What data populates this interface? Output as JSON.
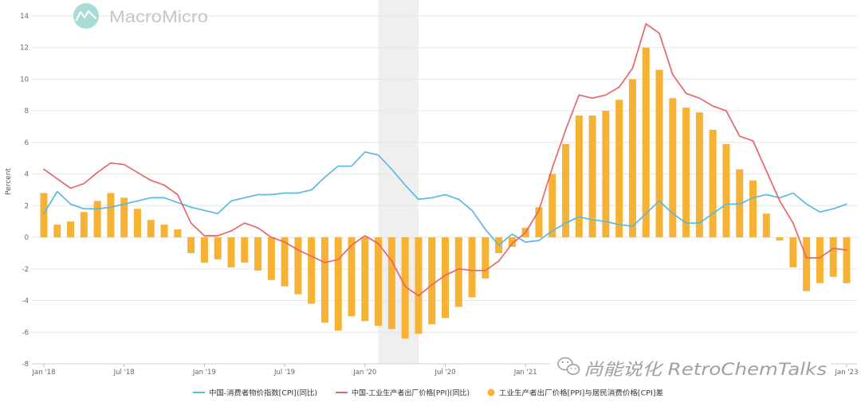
{
  "logo": {
    "text": "MacroMicro",
    "icon": "macromicro-logo-icon",
    "icon_color": "#a7ddd6",
    "text_color": "#c6c6c6"
  },
  "watermark": {
    "text": "尚能说化 RetroChemTalks",
    "icon": "wechat-icon",
    "color": "#a0a0a0"
  },
  "chart_data": {
    "type": "bar",
    "ylabel": "Percent",
    "ylim": [
      -8,
      14
    ],
    "yticks": [
      14,
      12,
      10,
      8,
      6,
      4,
      2,
      0,
      -2,
      -4,
      -6,
      -8
    ],
    "xlim": [
      "2018-01",
      "2023-01"
    ],
    "xticks": [
      {
        "date": "2018-01",
        "label": "Jan '18"
      },
      {
        "date": "2018-07",
        "label": "Jul '18"
      },
      {
        "date": "2019-01",
        "label": "Jan '19"
      },
      {
        "date": "2019-07",
        "label": "Jul '19"
      },
      {
        "date": "2020-01",
        "label": "Jan '20"
      },
      {
        "date": "2020-07",
        "label": "Jul '20"
      },
      {
        "date": "2021-01",
        "label": "Jan '21"
      },
      {
        "date": "2023-01",
        "label": "Jan '23"
      }
    ],
    "grid": true,
    "legend_position": "bottom",
    "shaded_ranges": [
      {
        "from": "2020-02",
        "to": "2020-05",
        "color": "#efefef"
      }
    ],
    "x": [
      "2018-01",
      "2018-02",
      "2018-03",
      "2018-04",
      "2018-05",
      "2018-06",
      "2018-07",
      "2018-08",
      "2018-09",
      "2018-10",
      "2018-11",
      "2018-12",
      "2019-01",
      "2019-02",
      "2019-03",
      "2019-04",
      "2019-05",
      "2019-06",
      "2019-07",
      "2019-08",
      "2019-09",
      "2019-10",
      "2019-11",
      "2019-12",
      "2020-01",
      "2020-02",
      "2020-03",
      "2020-04",
      "2020-05",
      "2020-06",
      "2020-07",
      "2020-08",
      "2020-09",
      "2020-10",
      "2020-11",
      "2020-12",
      "2021-01",
      "2021-02",
      "2021-03",
      "2021-04",
      "2021-05",
      "2021-06",
      "2021-07",
      "2021-08",
      "2021-09",
      "2021-10",
      "2021-11",
      "2021-12",
      "2022-01",
      "2022-02",
      "2022-03",
      "2022-04",
      "2022-05",
      "2022-06",
      "2022-07",
      "2022-08",
      "2022-09",
      "2022-10",
      "2022-11",
      "2022-12",
      "2023-01"
    ],
    "series": [
      {
        "name": "中国-消费者物价指数[CPI](同比)",
        "type": "line",
        "color": "#5ab9df",
        "values": [
          1.5,
          2.9,
          2.1,
          1.8,
          1.8,
          1.9,
          2.1,
          2.3,
          2.5,
          2.5,
          2.2,
          1.9,
          1.7,
          1.5,
          2.3,
          2.5,
          2.7,
          2.7,
          2.8,
          2.8,
          3.0,
          3.8,
          4.5,
          4.5,
          5.4,
          5.2,
          4.3,
          3.3,
          2.4,
          2.5,
          2.7,
          2.4,
          1.7,
          0.5,
          -0.5,
          0.2,
          -0.3,
          -0.2,
          0.4,
          0.9,
          1.3,
          1.1,
          1.0,
          0.8,
          0.7,
          1.5,
          2.3,
          1.5,
          0.9,
          0.9,
          1.5,
          2.1,
          2.1,
          2.5,
          2.7,
          2.5,
          2.8,
          2.1,
          1.6,
          1.8,
          2.1
        ]
      },
      {
        "name": "中国-工业生产者出厂价格[PPI](同比)",
        "type": "line",
        "color": "#e8656a",
        "values": [
          4.3,
          3.7,
          3.1,
          3.4,
          4.1,
          4.7,
          4.6,
          4.1,
          3.6,
          3.3,
          2.7,
          0.9,
          0.1,
          0.1,
          0.4,
          0.9,
          0.6,
          0.0,
          -0.3,
          -0.8,
          -1.2,
          -1.6,
          -1.4,
          -0.5,
          0.1,
          -0.4,
          -1.5,
          -3.1,
          -3.7,
          -3.0,
          -2.4,
          -2.0,
          -2.1,
          -2.1,
          -1.5,
          -0.4,
          0.3,
          1.7,
          4.4,
          6.8,
          9.0,
          8.8,
          9.0,
          9.5,
          10.7,
          13.5,
          12.9,
          10.3,
          9.1,
          8.8,
          8.3,
          8.0,
          6.4,
          6.1,
          4.2,
          2.3,
          0.9,
          -1.3,
          -1.3,
          -0.7,
          -0.8
        ]
      },
      {
        "name": "工业生产者出厂价格[PPI]与居民消费价格[CPI]差",
        "type": "bar",
        "color": "#f5b234",
        "values": [
          2.8,
          0.8,
          1.0,
          1.6,
          2.3,
          2.8,
          2.5,
          1.8,
          1.1,
          0.8,
          0.5,
          -1.0,
          -1.6,
          -1.4,
          -1.9,
          -1.6,
          -2.1,
          -2.7,
          -3.1,
          -3.6,
          -4.2,
          -5.4,
          -5.9,
          -5.0,
          -5.3,
          -5.6,
          -5.8,
          -6.4,
          -6.1,
          -5.5,
          -5.1,
          -4.4,
          -3.8,
          -2.6,
          -1.0,
          -0.6,
          0.6,
          1.9,
          4.0,
          5.9,
          7.7,
          7.7,
          8.0,
          8.7,
          10.0,
          12.0,
          10.6,
          8.8,
          8.2,
          7.9,
          6.8,
          5.9,
          4.3,
          3.6,
          1.5,
          -0.2,
          -1.9,
          -3.4,
          -2.9,
          -2.5,
          -2.9
        ]
      }
    ]
  }
}
